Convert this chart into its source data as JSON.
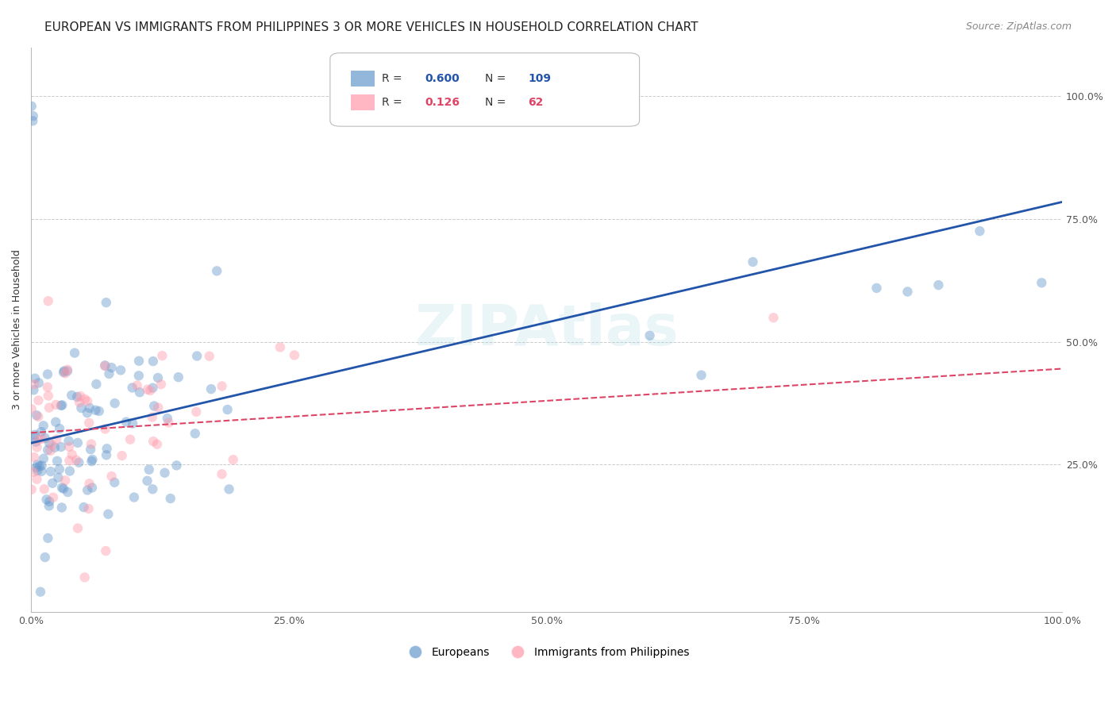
{
  "title": "EUROPEAN VS IMMIGRANTS FROM PHILIPPINES 3 OR MORE VEHICLES IN HOUSEHOLD CORRELATION CHART",
  "source": "Source: ZipAtlas.com",
  "ylabel": "3 or more Vehicles in Household",
  "xlim": [
    0.0,
    1.0
  ],
  "ylim": [
    -0.05,
    1.1
  ],
  "blue_R": 0.6,
  "blue_N": 109,
  "pink_R": 0.126,
  "pink_N": 62,
  "blue_color": "#6699CC",
  "pink_color": "#FF99AA",
  "blue_line_color": "#2255AA",
  "pink_line_color": "#DD4466",
  "grid_color": "#CCCCCC",
  "background_color": "#FFFFFF",
  "legend_blue": "Europeans",
  "legend_pink": "Immigrants from Philippines",
  "title_fontsize": 11,
  "source_fontsize": 9,
  "label_fontsize": 9,
  "tick_fontsize": 9,
  "legend_fontsize": 10,
  "marker_size": 80,
  "marker_alpha": 0.45,
  "blue_seed": 42,
  "pink_seed": 99
}
